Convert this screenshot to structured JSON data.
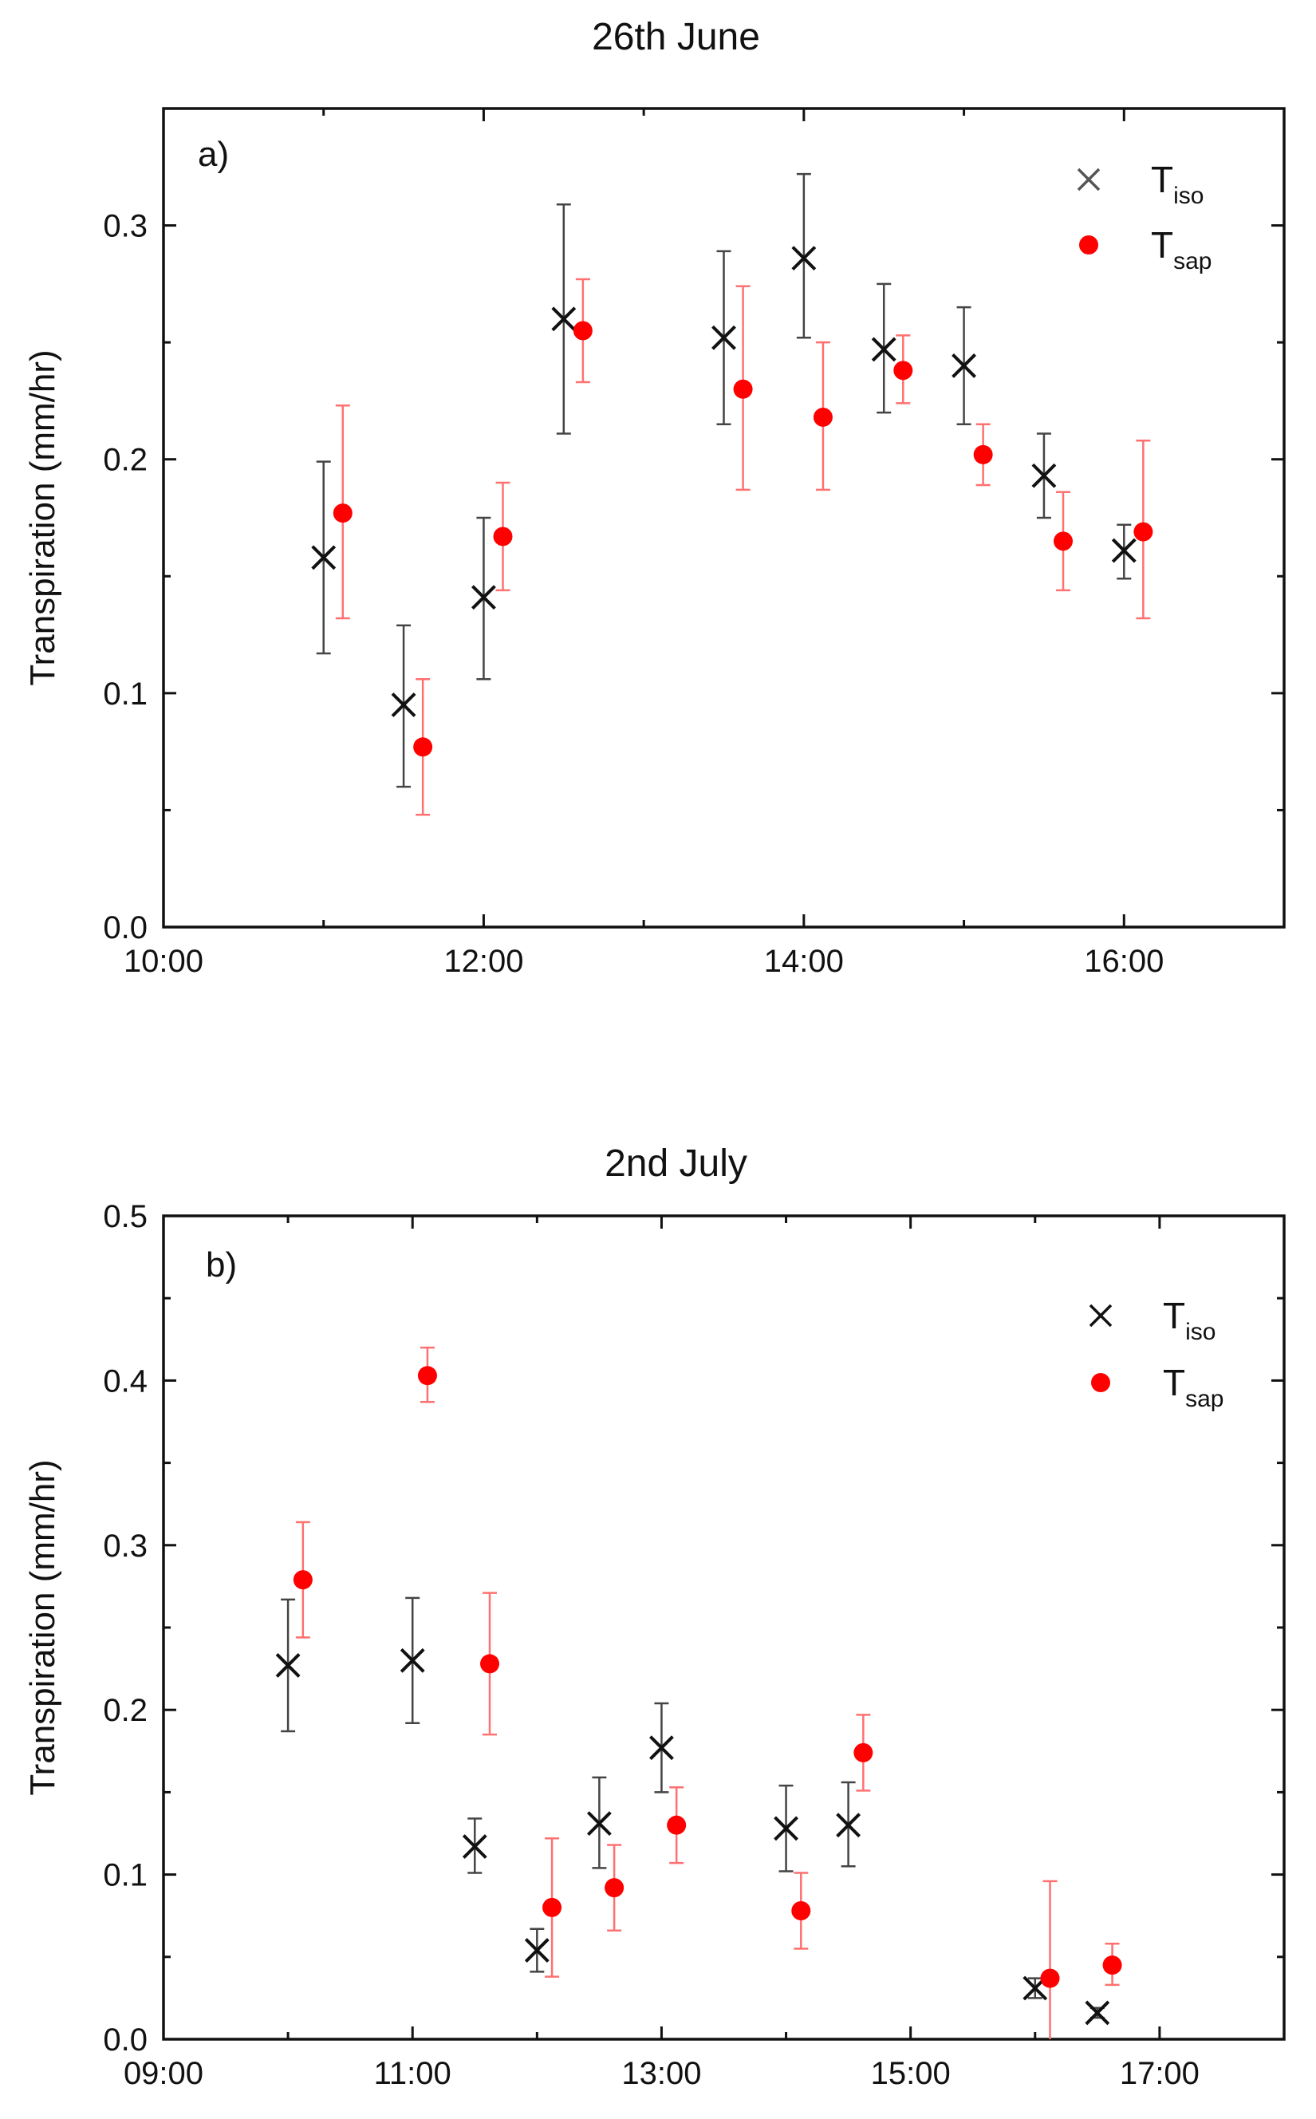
{
  "chart_data": [
    {
      "type": "scatter",
      "panel_label": "a)",
      "title": "26th June",
      "xlabel": "",
      "ylabel": "Transpiration (mm/hr)",
      "xlim": [
        10.0,
        17.0
      ],
      "ylim": [
        0.0,
        0.35
      ],
      "xticks": [
        {
          "value": 10,
          "label": "10:00"
        },
        {
          "value": 12,
          "label": "12:00"
        },
        {
          "value": 14,
          "label": "14:00"
        },
        {
          "value": 16,
          "label": "16:00"
        }
      ],
      "yticks": [
        {
          "value": 0.0,
          "label": "0.0"
        },
        {
          "value": 0.1,
          "label": "0.1"
        },
        {
          "value": 0.2,
          "label": "0.2"
        },
        {
          "value": 0.3,
          "label": "0.3"
        }
      ],
      "legend_position": "top-right",
      "series": [
        {
          "name": "T",
          "name_sub": "iso",
          "marker": "x",
          "color": "#111111",
          "errcolor": "#444444",
          "x": [
            11.0,
            11.5,
            12.0,
            12.5,
            13.5,
            14.0,
            14.5,
            15.0,
            15.5,
            16.0
          ],
          "y": [
            0.158,
            0.095,
            0.141,
            0.26,
            0.252,
            0.286,
            0.247,
            0.24,
            0.193,
            0.161
          ],
          "err_low": [
            0.041,
            0.035,
            0.035,
            0.049,
            0.037,
            0.034,
            0.027,
            0.025,
            0.018,
            0.012
          ],
          "err_high": [
            0.041,
            0.034,
            0.034,
            0.049,
            0.037,
            0.036,
            0.028,
            0.025,
            0.018,
            0.011
          ]
        },
        {
          "name": "T",
          "name_sub": "sap",
          "marker": "circle",
          "color": "#ff0000",
          "errcolor": "#ff7070",
          "x": [
            11.12,
            11.62,
            12.12,
            12.62,
            13.62,
            14.12,
            14.62,
            15.12,
            15.62,
            16.12
          ],
          "y": [
            0.177,
            0.077,
            0.167,
            0.255,
            0.23,
            0.218,
            0.238,
            0.202,
            0.165,
            0.169
          ],
          "err_low": [
            0.045,
            0.029,
            0.023,
            0.022,
            0.043,
            0.031,
            0.014,
            0.013,
            0.021,
            0.037
          ],
          "err_high": [
            0.046,
            0.029,
            0.023,
            0.022,
            0.044,
            0.032,
            0.015,
            0.013,
            0.021,
            0.039
          ]
        }
      ]
    },
    {
      "type": "scatter",
      "panel_label": "b)",
      "title": "2nd July",
      "xlabel": "",
      "ylabel": "Transpiration (mm/hr)",
      "xlim": [
        9.0,
        18.0
      ],
      "ylim": [
        0.0,
        0.5
      ],
      "xticks": [
        {
          "value": 9,
          "label": "09:00"
        },
        {
          "value": 11,
          "label": "11:00"
        },
        {
          "value": 13,
          "label": "13:00"
        },
        {
          "value": 15,
          "label": "15:00"
        },
        {
          "value": 17,
          "label": "17:00"
        }
      ],
      "yticks": [
        {
          "value": 0.0,
          "label": "0.0"
        },
        {
          "value": 0.1,
          "label": "0.1"
        },
        {
          "value": 0.2,
          "label": "0.2"
        },
        {
          "value": 0.3,
          "label": "0.3"
        },
        {
          "value": 0.4,
          "label": "0.4"
        },
        {
          "value": 0.5,
          "label": "0.5"
        }
      ],
      "legend_position": "top-right",
      "series": [
        {
          "name": "T",
          "name_sub": "iso",
          "marker": "x",
          "color": "#111111",
          "errcolor": "#444444",
          "x": [
            10.0,
            11.0,
            11.5,
            12.0,
            12.5,
            13.0,
            14.0,
            14.5,
            16.0,
            16.5
          ],
          "y": [
            0.227,
            0.23,
            0.117,
            0.054,
            0.131,
            0.177,
            0.128,
            0.13,
            0.031,
            0.016
          ],
          "err_low": [
            0.04,
            0.038,
            0.016,
            0.013,
            0.027,
            0.027,
            0.026,
            0.025,
            0.006,
            0.003
          ],
          "err_high": [
            0.04,
            0.038,
            0.017,
            0.013,
            0.028,
            0.027,
            0.026,
            0.026,
            0.006,
            0.003
          ]
        },
        {
          "name": "T",
          "name_sub": "sap",
          "marker": "circle",
          "color": "#ff0000",
          "errcolor": "#ff7070",
          "x": [
            10.12,
            11.12,
            11.62,
            12.12,
            12.62,
            13.12,
            14.12,
            14.62,
            16.12,
            16.62
          ],
          "y": [
            0.279,
            0.403,
            0.228,
            0.08,
            0.092,
            0.13,
            0.078,
            0.174,
            0.037,
            0.045
          ],
          "err_low": [
            0.035,
            0.016,
            0.043,
            0.042,
            0.026,
            0.023,
            0.023,
            0.023,
            0.037,
            0.012
          ],
          "err_high": [
            0.035,
            0.017,
            0.043,
            0.042,
            0.026,
            0.023,
            0.023,
            0.023,
            0.059,
            0.013
          ]
        }
      ]
    }
  ]
}
